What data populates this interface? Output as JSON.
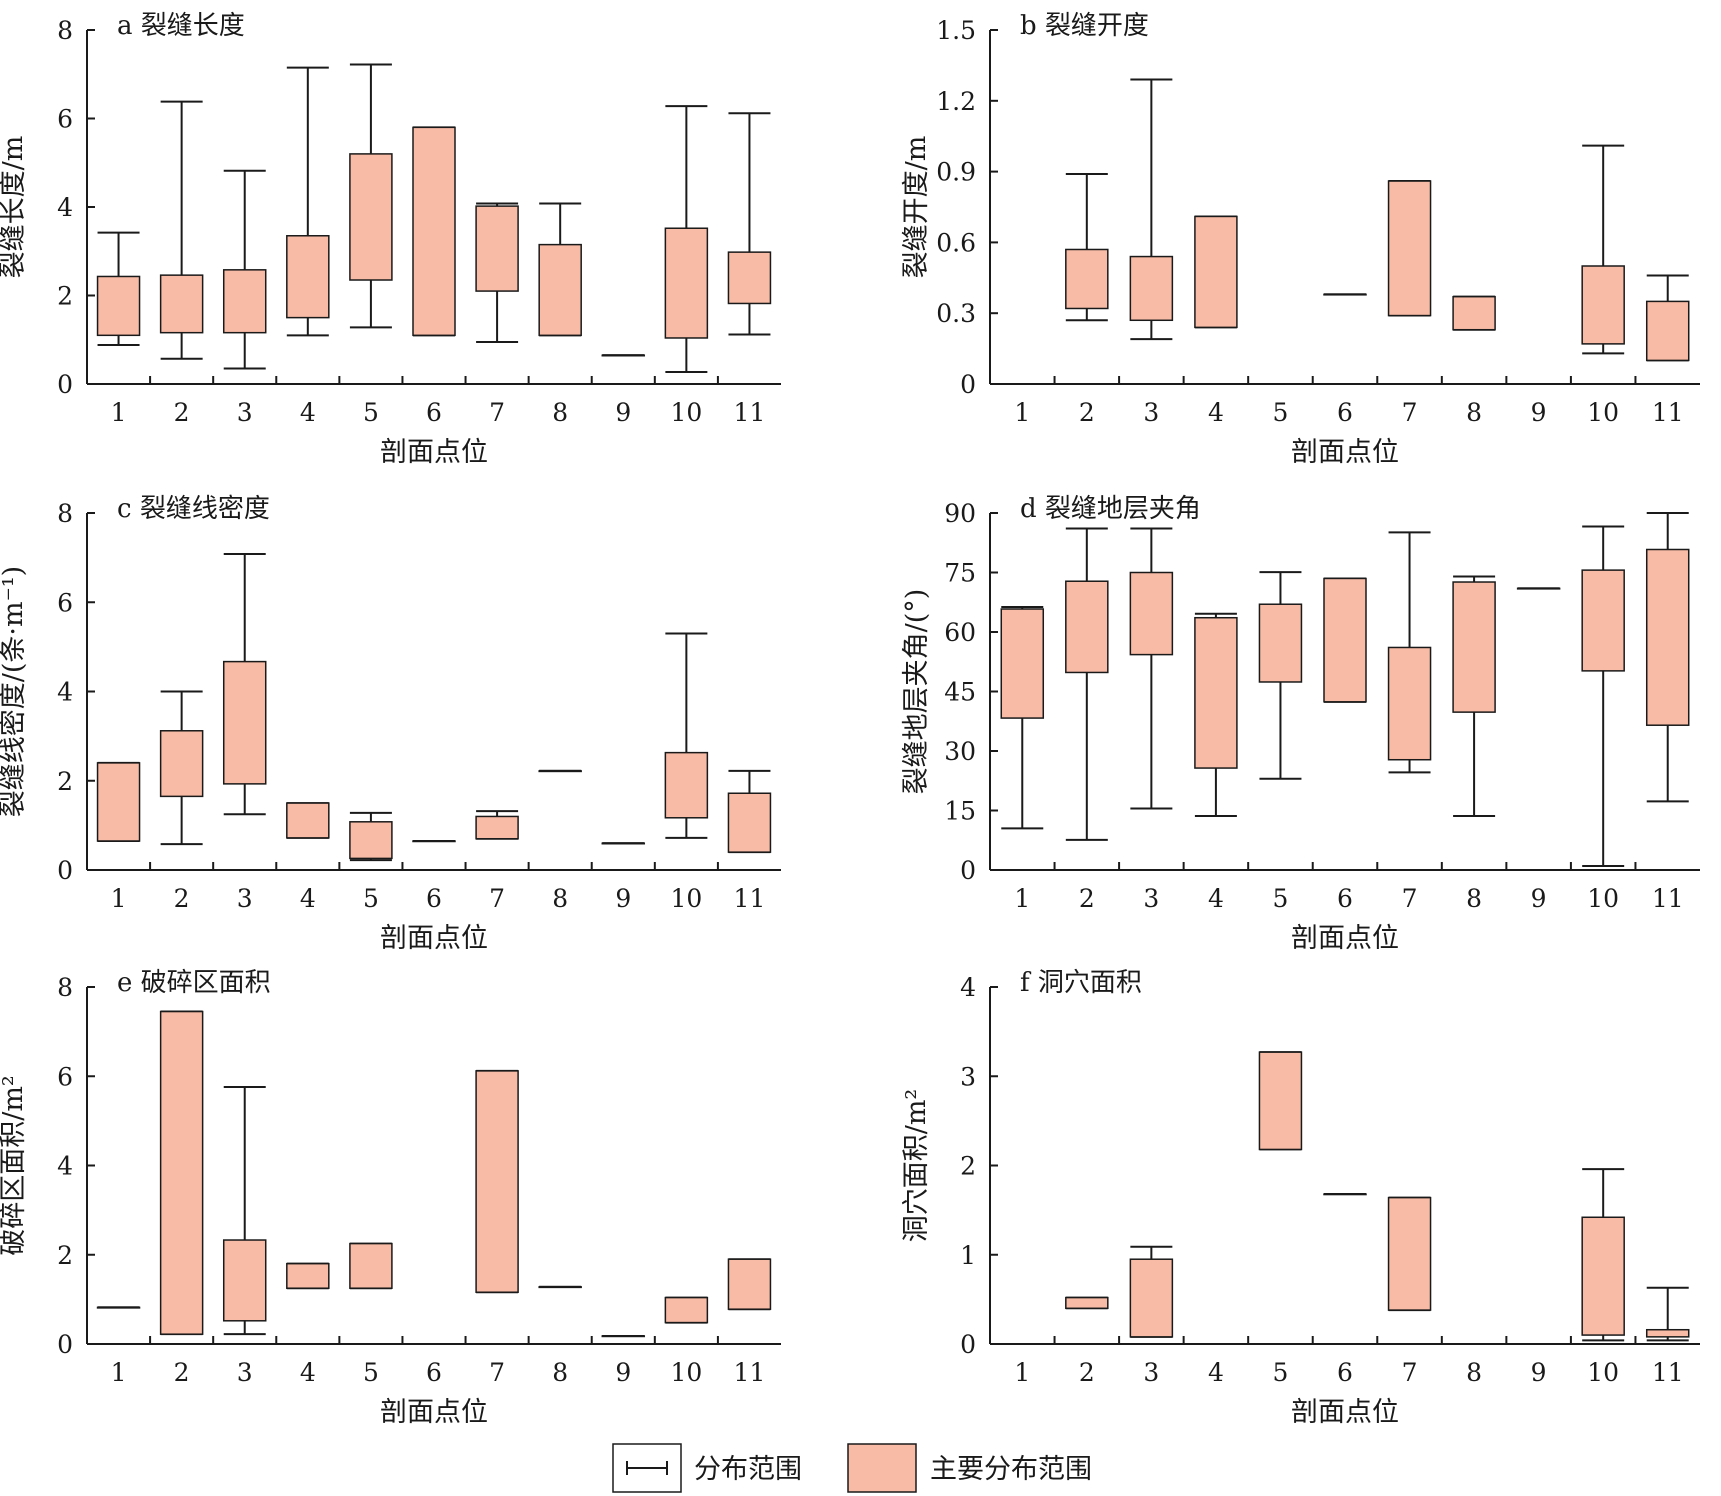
{
  "colors": {
    "box_fill": "#f8bba6",
    "stroke": "#1a1a1a",
    "background": "#ffffff"
  },
  "legend": {
    "range_label": "分布范围",
    "main_range_label": "主要分布范围"
  },
  "chart_data": [
    {
      "type": "box",
      "title": "a 裂缝长度",
      "xlabel": "剖面点位",
      "ylabel": "裂缝长度/m",
      "categories": [
        "1",
        "2",
        "3",
        "4",
        "5",
        "6",
        "7",
        "8",
        "9",
        "10",
        "11"
      ],
      "ylim": [
        0,
        8
      ],
      "yticks": [
        0,
        2,
        4,
        6,
        8
      ],
      "ytick_labels": [
        "0",
        "2",
        "4",
        "6",
        "8"
      ],
      "grid": false,
      "boxes": [
        {
          "x": "1",
          "min": 0.88,
          "q1": 1.1,
          "q3": 2.43,
          "max": 3.42
        },
        {
          "x": "2",
          "min": 0.57,
          "q1": 1.16,
          "q3": 2.46,
          "max": 6.38
        },
        {
          "x": "3",
          "min": 0.35,
          "q1": 1.16,
          "q3": 2.58,
          "max": 4.82
        },
        {
          "x": "4",
          "min": 1.1,
          "q1": 1.5,
          "q3": 3.35,
          "max": 7.15
        },
        {
          "x": "5",
          "min": 1.28,
          "q1": 2.35,
          "q3": 5.2,
          "max": 7.22
        },
        {
          "x": "6",
          "min": 1.1,
          "q1": 1.1,
          "q3": 5.8,
          "max": 5.8
        },
        {
          "x": "7",
          "min": 0.95,
          "q1": 2.1,
          "q3": 4.02,
          "max": 4.08
        },
        {
          "x": "8",
          "min": 1.1,
          "q1": 1.1,
          "q3": 3.15,
          "max": 4.08
        },
        {
          "x": "9",
          "min": 0.65,
          "q1": 0.65,
          "q3": 0.65,
          "max": 0.65
        },
        {
          "x": "10",
          "min": 0.27,
          "q1": 1.04,
          "q3": 3.52,
          "max": 6.28
        },
        {
          "x": "11",
          "min": 1.12,
          "q1": 1.82,
          "q3": 2.98,
          "max": 6.12
        }
      ]
    },
    {
      "type": "box",
      "title": "b 裂缝开度",
      "xlabel": "剖面点位",
      "ylabel": "裂缝开度/m",
      "categories": [
        "1",
        "2",
        "3",
        "4",
        "5",
        "6",
        "7",
        "8",
        "9",
        "10",
        "11"
      ],
      "ylim": [
        0,
        1.5
      ],
      "yticks": [
        0,
        0.3,
        0.6,
        0.9,
        1.2,
        1.5
      ],
      "ytick_labels": [
        "0",
        "0.3",
        "0.6",
        "0.9",
        "1.2",
        "1.5"
      ],
      "grid": false,
      "boxes": [
        {
          "x": "2",
          "min": 0.27,
          "q1": 0.32,
          "q3": 0.57,
          "max": 0.89
        },
        {
          "x": "3",
          "min": 0.19,
          "q1": 0.27,
          "q3": 0.54,
          "max": 1.29
        },
        {
          "x": "4",
          "min": 0.24,
          "q1": 0.24,
          "q3": 0.71,
          "max": 0.71
        },
        {
          "x": "6",
          "min": 0.38,
          "q1": 0.38,
          "q3": 0.38,
          "max": 0.38
        },
        {
          "x": "7",
          "min": 0.29,
          "q1": 0.29,
          "q3": 0.86,
          "max": 0.86
        },
        {
          "x": "8",
          "min": 0.23,
          "q1": 0.23,
          "q3": 0.37,
          "max": 0.37
        },
        {
          "x": "10",
          "min": 0.13,
          "q1": 0.17,
          "q3": 0.5,
          "max": 1.01
        },
        {
          "x": "11",
          "min": 0.1,
          "q1": 0.1,
          "q3": 0.35,
          "max": 0.46
        }
      ]
    },
    {
      "type": "box",
      "title": "c 裂缝线密度",
      "xlabel": "剖面点位",
      "ylabel": "裂缝线密度/(条·m⁻¹)",
      "categories": [
        "1",
        "2",
        "3",
        "4",
        "5",
        "6",
        "7",
        "8",
        "9",
        "10",
        "11"
      ],
      "ylim": [
        0,
        8
      ],
      "yticks": [
        0,
        2,
        4,
        6,
        8
      ],
      "ytick_labels": [
        "0",
        "2",
        "4",
        "6",
        "8"
      ],
      "grid": false,
      "boxes": [
        {
          "x": "1",
          "min": 0.65,
          "q1": 0.65,
          "q3": 2.4,
          "max": 2.4
        },
        {
          "x": "2",
          "min": 0.58,
          "q1": 1.65,
          "q3": 3.12,
          "max": 4.0
        },
        {
          "x": "3",
          "min": 1.25,
          "q1": 1.93,
          "q3": 4.67,
          "max": 7.08
        },
        {
          "x": "4",
          "min": 0.72,
          "q1": 0.72,
          "q3": 1.5,
          "max": 1.5
        },
        {
          "x": "5",
          "min": 0.22,
          "q1": 0.26,
          "q3": 1.08,
          "max": 1.28
        },
        {
          "x": "6",
          "min": 0.65,
          "q1": 0.65,
          "q3": 0.65,
          "max": 0.65
        },
        {
          "x": "7",
          "min": 0.7,
          "q1": 0.7,
          "q3": 1.2,
          "max": 1.32
        },
        {
          "x": "8",
          "min": 2.22,
          "q1": 2.22,
          "q3": 2.22,
          "max": 2.22
        },
        {
          "x": "9",
          "min": 0.6,
          "q1": 0.6,
          "q3": 0.6,
          "max": 0.6
        },
        {
          "x": "10",
          "min": 0.72,
          "q1": 1.17,
          "q3": 2.63,
          "max": 5.3
        },
        {
          "x": "11",
          "min": 0.4,
          "q1": 0.4,
          "q3": 1.72,
          "max": 2.22
        }
      ]
    },
    {
      "type": "box",
      "title": "d 裂缝地层夹角",
      "xlabel": "剖面点位",
      "ylabel": "裂缝地层夹角/(°)",
      "categories": [
        "1",
        "2",
        "3",
        "4",
        "5",
        "6",
        "7",
        "8",
        "9",
        "10",
        "11"
      ],
      "ylim": [
        0,
        90
      ],
      "yticks": [
        0,
        15,
        30,
        45,
        60,
        75,
        90
      ],
      "ytick_labels": [
        "0",
        "15",
        "30",
        "45",
        "60",
        "75",
        "90"
      ],
      "grid": false,
      "boxes": [
        {
          "x": "1",
          "min": 10.5,
          "q1": 38.3,
          "q3": 65.8,
          "max": 66.3
        },
        {
          "x": "2",
          "min": 7.6,
          "q1": 49.8,
          "q3": 72.8,
          "max": 86.1
        },
        {
          "x": "3",
          "min": 15.5,
          "q1": 54.3,
          "q3": 75.0,
          "max": 86.1
        },
        {
          "x": "4",
          "min": 13.6,
          "q1": 25.7,
          "q3": 63.6,
          "max": 64.6
        },
        {
          "x": "5",
          "min": 23.0,
          "q1": 47.4,
          "q3": 67.0,
          "max": 75.1
        },
        {
          "x": "6",
          "min": 42.4,
          "q1": 42.4,
          "q3": 73.5,
          "max": 73.5
        },
        {
          "x": "7",
          "min": 24.6,
          "q1": 27.8,
          "q3": 56.1,
          "max": 85.1
        },
        {
          "x": "8",
          "min": 13.6,
          "q1": 39.8,
          "q3": 72.6,
          "max": 74.0
        },
        {
          "x": "9",
          "min": 71.0,
          "q1": 71.0,
          "q3": 71.0,
          "max": 71.0
        },
        {
          "x": "10",
          "min": 1.0,
          "q1": 50.2,
          "q3": 75.6,
          "max": 86.6
        },
        {
          "x": "11",
          "min": 17.3,
          "q1": 36.5,
          "q3": 80.8,
          "max": 90.0
        }
      ]
    },
    {
      "type": "box",
      "title": "e 破碎区面积",
      "xlabel": "剖面点位",
      "ylabel": "破碎区面积/m²",
      "categories": [
        "1",
        "2",
        "3",
        "4",
        "5",
        "6",
        "7",
        "8",
        "9",
        "10",
        "11"
      ],
      "ylim": [
        0,
        8
      ],
      "yticks": [
        0,
        2,
        4,
        6,
        8
      ],
      "ytick_labels": [
        "0",
        "2",
        "4",
        "6",
        "8"
      ],
      "grid": false,
      "boxes": [
        {
          "x": "1",
          "min": 0.82,
          "q1": 0.82,
          "q3": 0.82,
          "max": 0.82
        },
        {
          "x": "2",
          "min": 0.22,
          "q1": 0.22,
          "q3": 7.45,
          "max": 7.45
        },
        {
          "x": "3",
          "min": 0.22,
          "q1": 0.52,
          "q3": 2.33,
          "max": 5.76
        },
        {
          "x": "4",
          "min": 1.25,
          "q1": 1.25,
          "q3": 1.8,
          "max": 1.8
        },
        {
          "x": "5",
          "min": 1.25,
          "q1": 1.25,
          "q3": 2.25,
          "max": 2.25
        },
        {
          "x": "7",
          "min": 1.16,
          "q1": 1.16,
          "q3": 6.12,
          "max": 6.12
        },
        {
          "x": "8",
          "min": 1.28,
          "q1": 1.28,
          "q3": 1.28,
          "max": 1.28
        },
        {
          "x": "9",
          "min": 0.18,
          "q1": 0.18,
          "q3": 0.18,
          "max": 0.18
        },
        {
          "x": "10",
          "min": 0.48,
          "q1": 0.48,
          "q3": 1.04,
          "max": 1.04
        },
        {
          "x": "11",
          "min": 0.78,
          "q1": 0.78,
          "q3": 1.9,
          "max": 1.9
        }
      ]
    },
    {
      "type": "box",
      "title": "f 洞穴面积",
      "xlabel": "剖面点位",
      "ylabel": "洞穴面积/m²",
      "categories": [
        "1",
        "2",
        "3",
        "4",
        "5",
        "6",
        "7",
        "8",
        "9",
        "10",
        "11"
      ],
      "ylim": [
        0,
        4
      ],
      "yticks": [
        0,
        1,
        2,
        3,
        4
      ],
      "ytick_labels": [
        "0",
        "1",
        "2",
        "3",
        "4"
      ],
      "grid": false,
      "boxes": [
        {
          "x": "2",
          "min": 0.4,
          "q1": 0.4,
          "q3": 0.52,
          "max": 0.52
        },
        {
          "x": "3",
          "min": 0.08,
          "q1": 0.08,
          "q3": 0.95,
          "max": 1.09
        },
        {
          "x": "5",
          "min": 2.18,
          "q1": 2.18,
          "q3": 3.27,
          "max": 3.27
        },
        {
          "x": "6",
          "min": 1.68,
          "q1": 1.68,
          "q3": 1.68,
          "max": 1.68
        },
        {
          "x": "7",
          "min": 0.38,
          "q1": 0.38,
          "q3": 1.64,
          "max": 1.64
        },
        {
          "x": "10",
          "min": 0.04,
          "q1": 0.1,
          "q3": 1.42,
          "max": 1.96
        },
        {
          "x": "11",
          "min": 0.04,
          "q1": 0.08,
          "q3": 0.16,
          "max": 0.63
        }
      ]
    }
  ]
}
